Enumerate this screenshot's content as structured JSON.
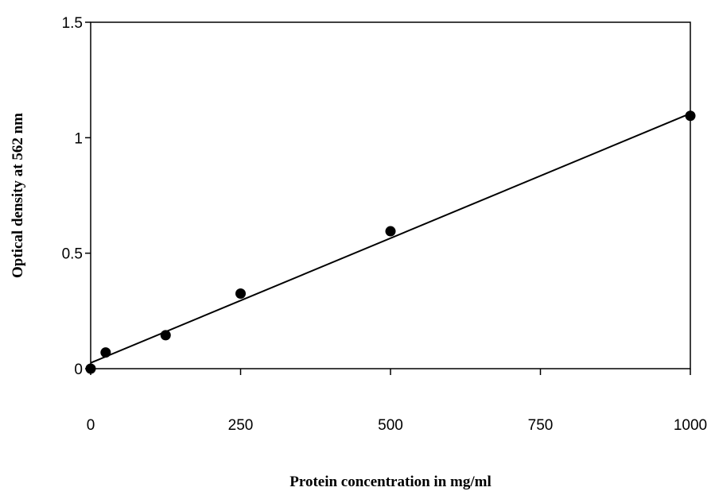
{
  "chart_data": {
    "type": "scatter",
    "title": "",
    "xlabel": "Protein concentration in mg/ml",
    "ylabel": "Optical density at 562 nm",
    "xlim": [
      0,
      1000
    ],
    "ylim": [
      0,
      1.5
    ],
    "x_ticks": [
      0,
      250,
      500,
      750,
      1000
    ],
    "x_tick_labels": [
      "0",
      "250",
      "500",
      "750",
      "1000"
    ],
    "y_ticks": [
      0,
      0.5,
      1,
      1.5
    ],
    "y_tick_labels": [
      "0",
      "0.5",
      "1",
      "1.5"
    ],
    "grid": false,
    "legend": "none",
    "series": [
      {
        "x": [
          0,
          25,
          125,
          250,
          500,
          1000
        ],
        "y": [
          0.0,
          0.07,
          0.145,
          0.325,
          0.595,
          1.095
        ],
        "marker": "filled-circle",
        "color": "#000000"
      }
    ],
    "trendline": {
      "type": "linear",
      "x": [
        0,
        1000
      ],
      "y": [
        0.025,
        1.105
      ],
      "color": "#000000"
    }
  }
}
